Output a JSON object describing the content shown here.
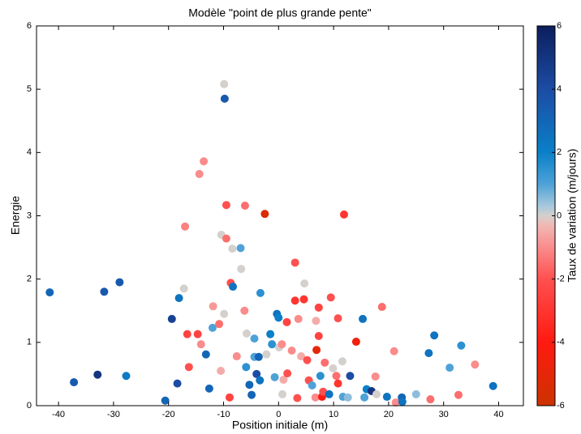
{
  "chart_data": {
    "type": "scatter",
    "title": "Modèle \"point de plus grande pente\"",
    "x_label": "Position initiale (m)",
    "y_label": "Energie",
    "xlim": [
      -44,
      44.5
    ],
    "ylim": [
      0,
      6
    ],
    "xticks": [
      -40,
      -30,
      -20,
      -10,
      0,
      10,
      20,
      30,
      40
    ],
    "yticks": [
      0,
      1,
      2,
      3,
      4,
      5,
      6
    ],
    "colorbar": {
      "label": "Taux de variation (m/jours)",
      "lim": [
        -6,
        6
      ],
      "ticks": [
        -6,
        -4,
        -2,
        0,
        2,
        4,
        6
      ],
      "colormap": [
        {
          "value": -6,
          "color": "#cc3300"
        },
        {
          "value": -4,
          "color": "#ff1a10"
        },
        {
          "value": -2,
          "color": "#ff5050"
        },
        {
          "value": -1,
          "color": "#fa8c8c"
        },
        {
          "value": -0.3,
          "color": "#f0b8b4"
        },
        {
          "value": 0,
          "color": "#d4d0cc"
        },
        {
          "value": 0.3,
          "color": "#a8c8dc"
        },
        {
          "value": 1,
          "color": "#4ea2d8"
        },
        {
          "value": 2,
          "color": "#0a80c8"
        },
        {
          "value": 4,
          "color": "#1c4ca4"
        },
        {
          "value": 6,
          "color": "#0c1e5c"
        }
      ]
    },
    "series": [
      {
        "x": [
          -41.6,
          -37.2,
          -32.9,
          -31.7,
          -28.9,
          -27.7,
          -20.6,
          -19.4,
          -18.4,
          -18.1,
          -17.2,
          -17.0,
          -16.6,
          -16.3,
          -14.7,
          -14.4,
          -13.6,
          -14.1,
          -13.2,
          -12.6,
          -12.0,
          -11.9,
          -10.8,
          -10.5,
          -10.4,
          -9.9,
          -9.9,
          -9.8,
          -9.5,
          -9.5,
          -8.9,
          -8.7,
          -8.4,
          -8.3,
          -7.6,
          -6.9,
          -6.8,
          -6.2,
          -6.1,
          -5.9,
          -5.8,
          -5.3,
          -4.9,
          -4.4,
          -4.4,
          -4.0,
          -3.6,
          -3.4,
          -3.3,
          -2.5,
          -2.2,
          -1.5,
          -1.2,
          -0.7,
          -0.3,
          0,
          0.1,
          0.6,
          0.7,
          0.9,
          1.5,
          1.6,
          2.4,
          3.0,
          3.0,
          3.4,
          3.6,
          4.1,
          4.6,
          4.7,
          5.2,
          5.5,
          6.1,
          6.7,
          6.8,
          6.9,
          7.3,
          7.3,
          7.6,
          7.9,
          8.1,
          8.4,
          9.2,
          9.5,
          9.9,
          10.5,
          10.8,
          10.8,
          11.6,
          11.7,
          11.9,
          12.6,
          13.0,
          14.1,
          15.3,
          15.6,
          16.0,
          16.9,
          17.6,
          17.8,
          18.8,
          19.7,
          21.0,
          21.3,
          22.4,
          22.5,
          25.0,
          27.3,
          27.6,
          28.3,
          31.1,
          32.7,
          33.2,
          35.7,
          39.0
        ],
        "values": [
          1.79,
          0.37,
          0.49,
          1.8,
          1.95,
          0.47,
          0.08,
          1.37,
          0.35,
          1.7,
          1.85,
          2.83,
          1.13,
          0.61,
          1.13,
          3.66,
          3.86,
          0.97,
          0.81,
          0.27,
          1.23,
          1.57,
          1.29,
          0.55,
          2.7,
          5.08,
          1.45,
          4.85,
          3.17,
          2.64,
          0.13,
          1.94,
          2.48,
          1.88,
          0.78,
          2.49,
          2.16,
          1.5,
          3.16,
          0.61,
          1.14,
          0.33,
          0.17,
          1.06,
          0.77,
          0.5,
          0.77,
          0.4,
          1.78,
          3.03,
          0.81,
          1.13,
          0.97,
          0.45,
          1.45,
          1.39,
          0.92,
          0.97,
          0.18,
          0.41,
          1.32,
          0.51,
          0.87,
          2.26,
          1.66,
          0.12,
          1.37,
          0.78,
          1.68,
          1.93,
          0.72,
          0.4,
          0.32,
          0.13,
          1.34,
          0.88,
          1.55,
          1.1,
          0.47,
          0.14,
          0.22,
          0.68,
          0.18,
          1.71,
          0.59,
          0.47,
          0.35,
          1.38,
          0.7,
          0.14,
          3.02,
          0.13,
          0.47,
          1.01,
          1.37,
          0.13,
          0.26,
          0.23,
          0.46,
          0.18,
          1.56,
          0.14,
          0.86,
          0.05,
          0.13,
          0.06,
          0.18,
          0.83,
          0.1,
          1.11,
          0.6,
          0.17,
          0.95,
          0.65,
          0.31
        ],
        "color_values": [
          3,
          3.5,
          5,
          3.5,
          3.5,
          2.2,
          3,
          4.5,
          4,
          2.5,
          0,
          -1.2,
          -2.5,
          -2,
          -2.5,
          -1,
          -1,
          -1,
          3,
          3,
          1,
          -0.8,
          -1.5,
          -0.5,
          0,
          0,
          0,
          3.5,
          -2,
          -1.5,
          -2.5,
          -2,
          0,
          2.5,
          -1,
          1,
          0,
          -1,
          -1.5,
          1.5,
          0,
          3,
          3,
          1,
          1,
          4,
          3,
          2.5,
          1.5,
          -5.5,
          0,
          2,
          1.5,
          1,
          2.5,
          2,
          0,
          -1,
          0,
          -0.5,
          -2.5,
          -2,
          -1,
          -2,
          -3,
          -2,
          -1,
          -0.5,
          -3,
          0,
          -2,
          -2,
          1,
          -1,
          -0.5,
          -5,
          -2.5,
          -2.5,
          1.5,
          -4,
          -2,
          -1.5,
          2.5,
          -2,
          0,
          -1.5,
          -3,
          -2,
          0,
          1,
          -3,
          0.5,
          4,
          -4.5,
          2.5,
          1,
          2,
          5,
          -1,
          0,
          -1.5,
          2.5,
          -1,
          -1,
          3,
          2.5,
          0.5,
          2.5,
          -1.5,
          2.5,
          1,
          -1.5,
          1.5,
          -1,
          2.5
        ]
      }
    ]
  }
}
